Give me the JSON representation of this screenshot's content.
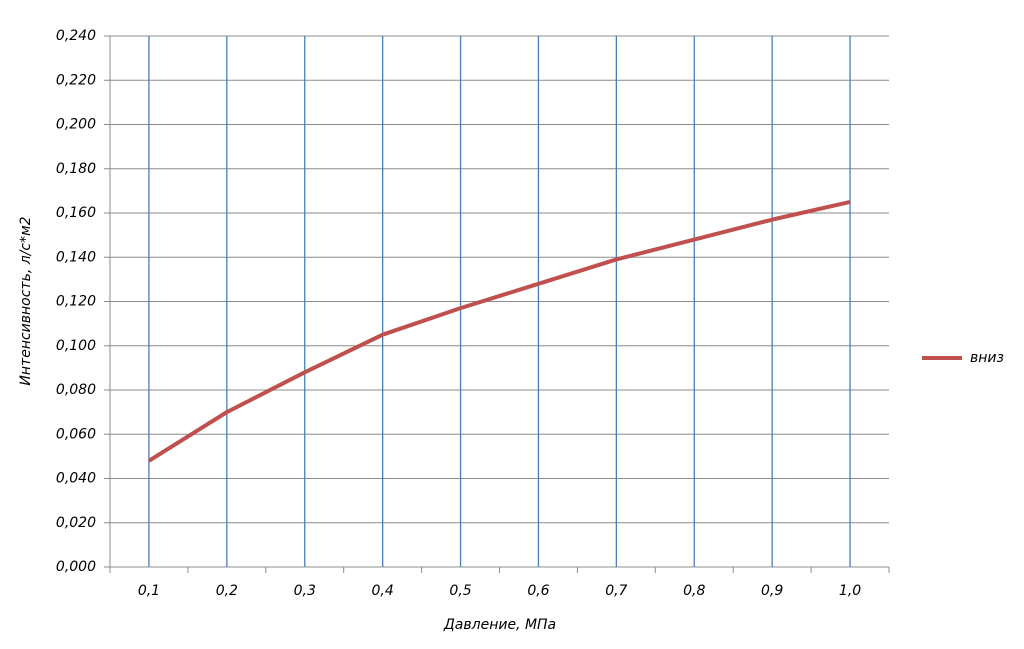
{
  "chart_data": {
    "type": "line",
    "x_label": "Давление, МПа",
    "y_label": "Интенсивность, л/с*м2",
    "categories": [
      "0,1",
      "0,2",
      "0,3",
      "0,4",
      "0,5",
      "0,6",
      "0,7",
      "0,8",
      "0,9",
      "1,0"
    ],
    "series": [
      {
        "name": "вниз",
        "color": "#c0504d",
        "values": [
          0.048,
          0.07,
          0.088,
          0.105,
          0.117,
          0.128,
          0.139,
          0.148,
          0.157,
          0.165
        ]
      }
    ],
    "ylim": [
      0,
      0.24
    ],
    "yticks": [
      {
        "value": 0,
        "label": "0,000"
      },
      {
        "value": 0.02,
        "label": "0,020"
      },
      {
        "value": 0.04,
        "label": "0,040"
      },
      {
        "value": 0.06,
        "label": "0,060"
      },
      {
        "value": 0.08,
        "label": "0,080"
      },
      {
        "value": 0.1,
        "label": "0,100"
      },
      {
        "value": 0.12,
        "label": "0,120"
      },
      {
        "value": 0.14,
        "label": "0,140"
      },
      {
        "value": 0.16,
        "label": "0,160"
      },
      {
        "value": 0.18,
        "label": "0,180"
      },
      {
        "value": 0.2,
        "label": "0,200"
      },
      {
        "value": 0.22,
        "label": "0,220"
      },
      {
        "value": 0.24,
        "label": "0,240"
      }
    ],
    "grid": true,
    "legend": "right"
  }
}
